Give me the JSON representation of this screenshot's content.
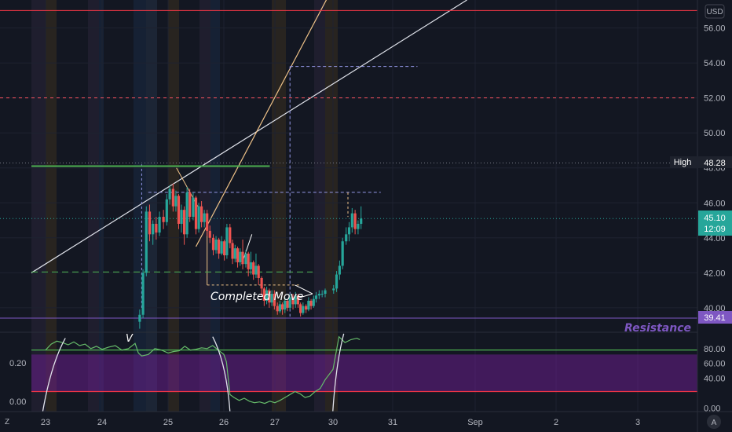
{
  "chart_data": {
    "type": "candlestick",
    "currency": "USD",
    "x_ticks": [
      "23",
      "24",
      "25",
      "26",
      "27",
      "30",
      "31",
      "Sep",
      "2",
      "3"
    ],
    "price_axis": {
      "ticks": [
        40.0,
        42.0,
        44.0,
        46.0,
        48.0,
        50.0,
        52.0,
        54.0,
        56.0
      ],
      "labels": [
        "40.00",
        "42.00",
        "44.00",
        "46.00",
        "48.00",
        "50.00",
        "52.00",
        "54.00",
        "56.00"
      ],
      "range": [
        38.6,
        57.6
      ]
    },
    "osc_axis": {
      "ticks": [
        0.0,
        40.0,
        60.0,
        80.0
      ],
      "labels": [
        "0.00",
        "40.00",
        "60.00",
        "80.00"
      ],
      "range": [
        -5,
        102
      ],
      "left_ticks": [
        "0.20",
        "0.00"
      ]
    },
    "last_price": {
      "value": 45.1,
      "label": "45.10",
      "countdown": "12:09",
      "color": "#26a69a"
    },
    "high_marker": {
      "value": 48.28,
      "label": "48.28",
      "name": "High"
    },
    "resistance": {
      "value": 39.41,
      "label": "39.41",
      "text": "Resistance",
      "color": "#7e57c2"
    },
    "annotations": {
      "completed_move": "Completed Move",
      "v_mark": "V"
    },
    "horizontal_lines": [
      {
        "value": 57.0,
        "color": "#f23645",
        "style": "solid"
      },
      {
        "value": 52.0,
        "color": "#f7525f",
        "style": "dashed"
      },
      {
        "value": 48.1,
        "color": "#4caf50",
        "style": "solid",
        "from_day": 23.0,
        "to_day": 26.9
      },
      {
        "value": 42.05,
        "color": "#4caf50",
        "style": "dashed",
        "from_day": 23.0,
        "to_day": 27.75
      }
    ],
    "candles": [
      [
        24.57,
        39.2,
        39.6,
        38.8,
        39.9
      ],
      [
        24.62,
        39.6,
        42.0,
        39.4,
        42.2
      ],
      [
        24.67,
        42.0,
        45.5,
        41.8,
        45.8
      ],
      [
        24.72,
        45.5,
        44.2,
        43.8,
        45.9
      ],
      [
        24.77,
        44.2,
        44.8,
        43.6,
        45.0
      ],
      [
        24.82,
        44.8,
        44.3,
        43.9,
        45.2
      ],
      [
        24.87,
        44.3,
        45.2,
        44.1,
        45.5
      ],
      [
        24.93,
        45.2,
        44.9,
        44.5,
        45.6
      ],
      [
        24.98,
        44.9,
        46.2,
        44.7,
        46.5
      ],
      [
        25.03,
        46.2,
        46.8,
        45.9,
        47.0
      ],
      [
        25.09,
        46.8,
        45.8,
        45.5,
        47.1
      ],
      [
        25.14,
        45.8,
        46.4,
        45.5,
        46.7
      ],
      [
        25.19,
        46.4,
        44.8,
        44.5,
        46.5
      ],
      [
        25.24,
        44.8,
        45.6,
        44.3,
        45.9
      ],
      [
        25.29,
        45.6,
        44.2,
        43.6,
        45.8
      ],
      [
        25.34,
        44.2,
        46.6,
        44.0,
        46.9
      ],
      [
        25.39,
        46.6,
        45.2,
        44.9,
        46.8
      ],
      [
        25.45,
        45.2,
        46.3,
        45.0,
        46.6
      ],
      [
        25.5,
        46.3,
        44.5,
        44.2,
        46.4
      ],
      [
        25.55,
        44.5,
        45.8,
        44.3,
        46.0
      ],
      [
        25.6,
        45.8,
        44.9,
        44.6,
        46.1
      ],
      [
        25.65,
        44.9,
        45.4,
        44.6,
        45.6
      ],
      [
        25.7,
        45.4,
        44.4,
        44.1,
        45.6
      ],
      [
        25.75,
        44.4,
        44.0,
        43.7,
        44.7
      ],
      [
        25.81,
        44.0,
        43.3,
        43.0,
        44.2
      ],
      [
        25.86,
        43.3,
        43.9,
        43.1,
        44.1
      ],
      [
        25.91,
        43.9,
        43.1,
        42.8,
        44.0
      ],
      [
        25.96,
        43.1,
        43.8,
        43.0,
        44.1
      ],
      [
        26.01,
        43.8,
        43.0,
        42.7,
        43.9
      ],
      [
        26.06,
        43.0,
        44.6,
        42.8,
        44.8
      ],
      [
        26.12,
        44.6,
        43.7,
        43.4,
        44.8
      ],
      [
        26.17,
        43.7,
        42.8,
        42.5,
        43.9
      ],
      [
        26.22,
        42.8,
        43.4,
        42.6,
        43.6
      ],
      [
        26.27,
        43.4,
        42.6,
        42.3,
        43.5
      ],
      [
        26.32,
        42.6,
        43.2,
        42.4,
        43.4
      ],
      [
        26.37,
        43.2,
        42.5,
        42.2,
        43.9
      ],
      [
        26.43,
        42.5,
        43.1,
        42.3,
        43.3
      ],
      [
        26.48,
        43.1,
        42.2,
        41.8,
        43.2
      ],
      [
        26.53,
        42.2,
        42.6,
        41.9,
        43.2
      ],
      [
        26.58,
        42.6,
        41.9,
        41.6,
        42.7
      ],
      [
        26.63,
        41.9,
        42.4,
        41.7,
        43.1
      ],
      [
        26.68,
        42.4,
        41.7,
        41.3,
        42.5
      ],
      [
        26.74,
        41.7,
        41.1,
        40.7,
        41.8
      ],
      [
        26.79,
        41.1,
        40.4,
        40.1,
        41.2
      ],
      [
        26.84,
        40.4,
        41.0,
        40.2,
        41.2
      ],
      [
        26.89,
        41.0,
        40.3,
        40.0,
        41.1
      ],
      [
        26.94,
        40.3,
        40.8,
        40.1,
        41.0
      ],
      [
        26.99,
        40.8,
        40.1,
        39.9,
        41.0
      ],
      [
        27.05,
        40.1,
        39.8,
        39.6,
        40.3
      ],
      [
        27.1,
        39.8,
        40.2,
        39.7,
        40.4
      ],
      [
        27.15,
        40.2,
        39.9,
        39.6,
        40.3
      ],
      [
        27.2,
        39.9,
        40.4,
        39.7,
        40.6
      ],
      [
        27.25,
        40.4,
        40.0,
        39.8,
        40.5
      ],
      [
        27.3,
        40.0,
        40.6,
        39.9,
        40.8
      ],
      [
        27.36,
        40.6,
        40.2,
        39.9,
        40.8
      ],
      [
        27.41,
        40.2,
        40.7,
        40.0,
        40.9
      ],
      [
        27.46,
        40.7,
        40.2,
        40.0,
        40.8
      ],
      [
        27.51,
        40.2,
        39.7,
        39.5,
        40.3
      ],
      [
        27.56,
        39.7,
        40.1,
        39.6,
        40.3
      ],
      [
        27.62,
        40.1,
        39.9,
        39.7,
        40.2
      ],
      [
        27.67,
        39.9,
        40.4,
        39.8,
        40.6
      ],
      [
        27.72,
        40.4,
        40.1,
        39.9,
        40.5
      ],
      [
        27.77,
        40.1,
        40.5,
        40.0,
        40.7
      ],
      [
        27.82,
        40.5,
        40.7,
        40.3,
        40.9
      ],
      [
        27.88,
        40.7,
        40.8,
        40.5,
        41.0
      ],
      [
        27.94,
        40.8,
        40.8,
        40.6,
        41.0
      ],
      [
        28.0,
        40.8,
        41.0,
        40.6,
        41.1
      ],
      [
        30.01,
        41.0,
        41.1,
        40.8,
        41.3
      ],
      [
        30.06,
        41.1,
        41.9,
        40.9,
        42.1
      ],
      [
        30.11,
        41.9,
        42.4,
        41.6,
        42.7
      ],
      [
        30.16,
        42.4,
        43.8,
        42.2,
        44.0
      ],
      [
        30.22,
        43.8,
        44.2,
        43.6,
        44.6
      ],
      [
        30.27,
        44.2,
        44.6,
        43.8,
        44.9
      ],
      [
        30.32,
        44.6,
        45.4,
        44.3,
        45.7
      ],
      [
        30.37,
        45.4,
        44.5,
        44.2,
        45.6
      ],
      [
        30.42,
        44.5,
        44.8,
        44.2,
        45.0
      ],
      [
        30.47,
        44.8,
        45.1,
        44.5,
        45.8
      ]
    ],
    "oscillator": {
      "series": [
        [
          23.0,
          78
        ],
        [
          23.1,
          86
        ],
        [
          23.2,
          90
        ],
        [
          23.3,
          88
        ],
        [
          23.4,
          85
        ],
        [
          23.5,
          89
        ],
        [
          23.6,
          84
        ],
        [
          23.7,
          86
        ],
        [
          23.8,
          80
        ],
        [
          23.9,
          83
        ],
        [
          24.0,
          79
        ],
        [
          24.1,
          82
        ],
        [
          24.2,
          84
        ],
        [
          24.3,
          78
        ],
        [
          24.4,
          80
        ],
        [
          24.5,
          87
        ],
        [
          24.55,
          74
        ],
        [
          24.6,
          70
        ],
        [
          24.7,
          72
        ],
        [
          24.8,
          80
        ],
        [
          24.9,
          78
        ],
        [
          25.0,
          74
        ],
        [
          25.1,
          76
        ],
        [
          25.2,
          77
        ],
        [
          25.3,
          83
        ],
        [
          25.4,
          78
        ],
        [
          25.5,
          79
        ],
        [
          25.6,
          81
        ],
        [
          25.7,
          80
        ],
        [
          25.8,
          84
        ],
        [
          25.9,
          78
        ],
        [
          26.0,
          72
        ],
        [
          26.05,
          62
        ],
        [
          26.12,
          18
        ],
        [
          26.2,
          14
        ],
        [
          26.3,
          10
        ],
        [
          26.4,
          13
        ],
        [
          26.5,
          9
        ],
        [
          26.6,
          7
        ],
        [
          26.7,
          8
        ],
        [
          26.8,
          6
        ],
        [
          26.9,
          9
        ],
        [
          27.0,
          7
        ],
        [
          27.1,
          10
        ],
        [
          27.2,
          14
        ],
        [
          27.3,
          18
        ],
        [
          27.4,
          22
        ],
        [
          27.5,
          19
        ],
        [
          27.6,
          14
        ],
        [
          27.7,
          16
        ],
        [
          27.8,
          22
        ],
        [
          27.9,
          26
        ],
        [
          28.0,
          38
        ],
        [
          30.0,
          52
        ],
        [
          30.1,
          96
        ],
        [
          30.2,
          88
        ],
        [
          30.3,
          92
        ],
        [
          30.4,
          94
        ],
        [
          30.45,
          92
        ]
      ],
      "bands": [
        {
          "value": 78,
          "color": "#4caf50"
        },
        {
          "value": 22,
          "color": "#f23645"
        }
      ],
      "zone": {
        "from": 22,
        "to": 72,
        "color": "#7b1fa2"
      }
    }
  },
  "ui": {
    "bottom_left_button": "Z",
    "bottom_right_button": "A"
  }
}
